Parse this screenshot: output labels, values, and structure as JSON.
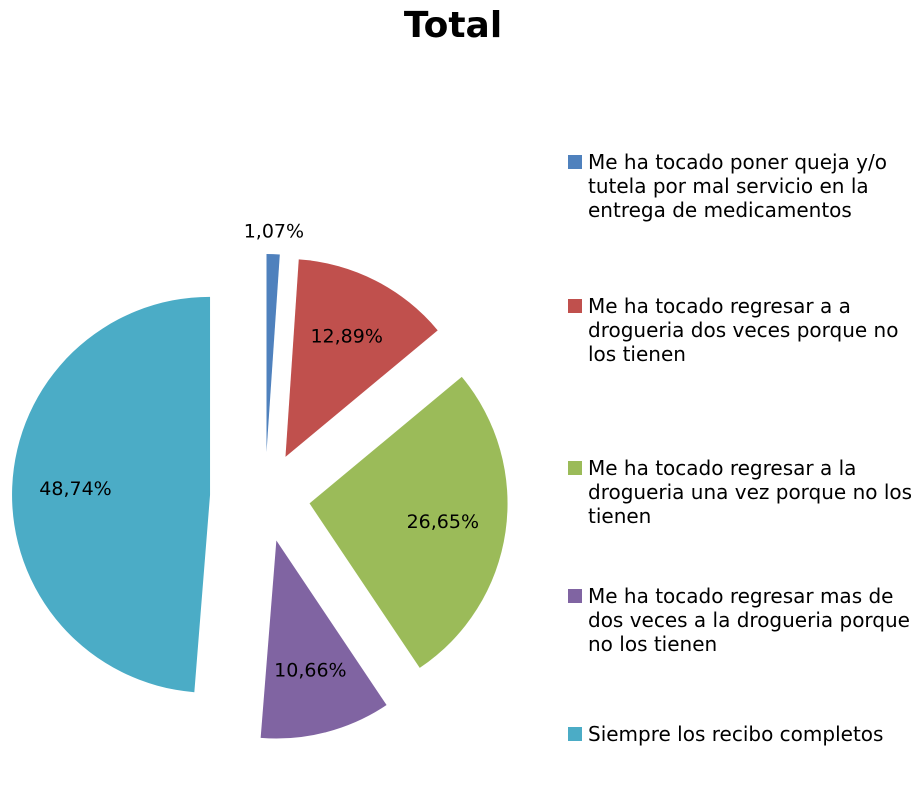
{
  "chart_data": {
    "type": "pie",
    "title": "Total",
    "categories": [
      "Me ha tocado poner queja y/o tutela por mal servicio en la entrega de medicamentos",
      "Me ha tocado regresar a a drogueria dos veces porque no los tienen",
      "Me ha tocado regresar a la drogueria una vez porque no los tienen",
      "Me ha tocado regresar mas de dos veces a la drogueria porque no los tienen",
      "Siempre los recibo completos"
    ],
    "values": [
      1.07,
      12.89,
      26.65,
      10.66,
      48.74
    ],
    "value_labels": [
      "1,07%",
      "12,89%",
      "26,65%",
      "10,66%",
      "48,74%"
    ],
    "colors": [
      "#4f81bd",
      "#c0504d",
      "#9bbb59",
      "#8064a2",
      "#4bacc6"
    ],
    "legend": "right"
  }
}
